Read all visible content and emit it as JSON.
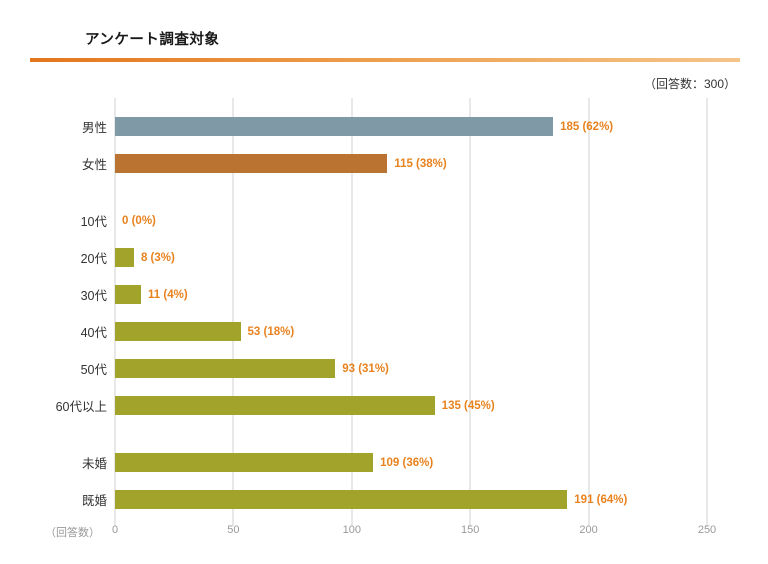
{
  "header": {
    "title": "アンケート調査対象",
    "response_count": "（回答数：300）"
  },
  "colors": {
    "accent_rule": "#e4761c",
    "male_bar": "#7f9aa6",
    "female_bar": "#ba7331",
    "olive_bar": "#a1a32b",
    "value_label": "#e8821e",
    "gridline": "#d2d2d2",
    "tick_label": "#999999"
  },
  "chart_data": {
    "type": "bar",
    "orientation": "horizontal",
    "title": "アンケート調査対象",
    "subtitle": "（回答数：300）",
    "xlabel": "（回答数）",
    "ylabel": "",
    "xlim": [
      0,
      250
    ],
    "xticks": [
      0,
      50,
      100,
      150,
      200,
      250
    ],
    "grid": true,
    "value_label_color": "#e8821e",
    "groups": [
      {
        "name": "gender",
        "rows": [
          {
            "label": "男性",
            "value": 185,
            "display": "185 (62%)",
            "color": "#7f9aa6"
          },
          {
            "label": "女性",
            "value": 115,
            "display": "115 (38%)",
            "color": "#ba7331"
          }
        ]
      },
      {
        "name": "age",
        "rows": [
          {
            "label": "10代",
            "value": 0,
            "display": "0 (0%)",
            "color": "#a1a32b"
          },
          {
            "label": "20代",
            "value": 8,
            "display": "8 (3%)",
            "color": "#a1a32b"
          },
          {
            "label": "30代",
            "value": 11,
            "display": "11 (4%)",
            "color": "#a1a32b"
          },
          {
            "label": "40代",
            "value": 53,
            "display": "53 (18%)",
            "color": "#a1a32b"
          },
          {
            "label": "50代",
            "value": 93,
            "display": "93 (31%)",
            "color": "#a1a32b"
          },
          {
            "label": "60代以上",
            "value": 135,
            "display": "135 (45%)",
            "color": "#a1a32b"
          }
        ]
      },
      {
        "name": "marital-status",
        "rows": [
          {
            "label": "未婚",
            "value": 109,
            "display": "109 (36%)",
            "color": "#a1a32b"
          },
          {
            "label": "既婚",
            "value": 191,
            "display": "191 (64%)",
            "color": "#a1a32b"
          }
        ]
      }
    ]
  }
}
